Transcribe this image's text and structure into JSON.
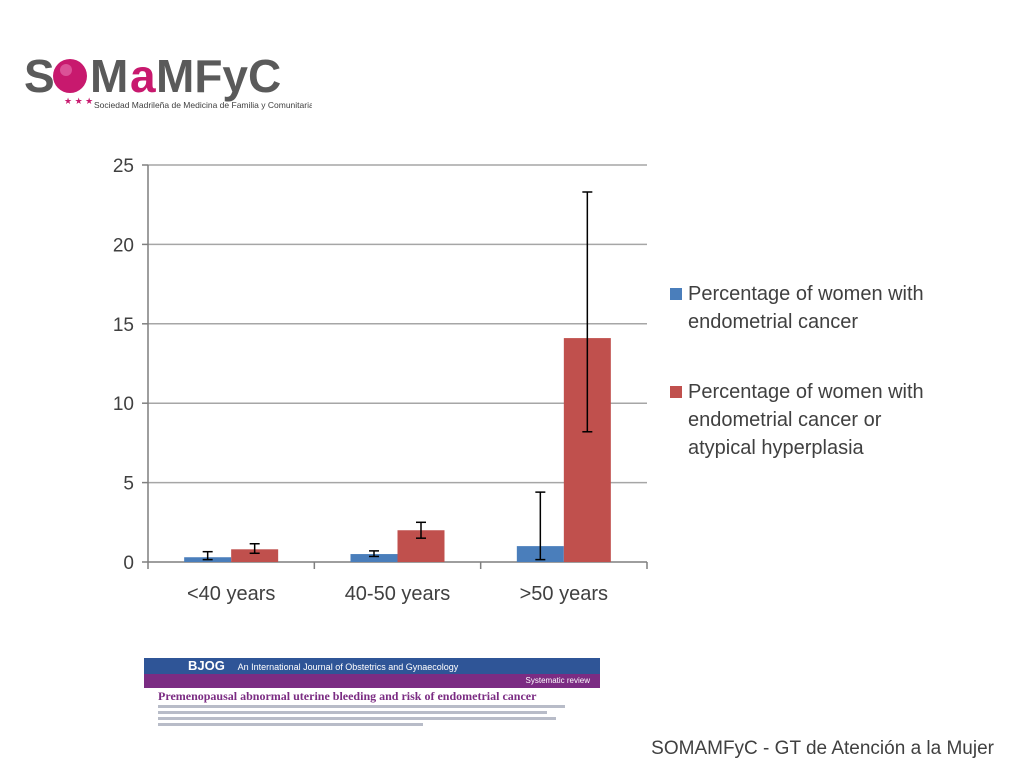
{
  "logo": {
    "name": "SOMAMFyC",
    "tagline": "Sociedad Madrileña de Medicina de Familia y Comunitaria",
    "colors": {
      "gray": "#5a5a5a",
      "magenta": "#c8196e"
    }
  },
  "chart_data": {
    "type": "bar",
    "categories": [
      "<40 years",
      "40-50 years",
      ">50 years"
    ],
    "series": [
      {
        "name": "Percentage of women with endometrial cancer",
        "color": "#4a7ebb",
        "values": [
          0.3,
          0.5,
          1.0
        ],
        "err_low": [
          0.15,
          0.35,
          0.15
        ],
        "err_high": [
          0.65,
          0.7,
          4.4
        ]
      },
      {
        "name": "Percentage of women with endometrial cancer or atypical hyperplasia",
        "color": "#c0504d",
        "values": [
          0.8,
          2.0,
          14.1
        ],
        "err_low": [
          0.55,
          1.5,
          8.2
        ],
        "err_high": [
          1.15,
          2.5,
          23.3
        ]
      }
    ],
    "yticks": [
      0,
      5,
      10,
      15,
      20,
      25
    ],
    "ylim": [
      0,
      25
    ],
    "grid": true,
    "legend": "right"
  },
  "journal": {
    "brand": "BJOG",
    "subtitle": "An International Journal of Obstetrics and Gynaecology",
    "section": "Systematic review",
    "title": "Premenopausal abnormal uterine bleeding and risk of endometrial cancer"
  },
  "footer": "SOMAMFyC - GT de Atención a la Mujer"
}
